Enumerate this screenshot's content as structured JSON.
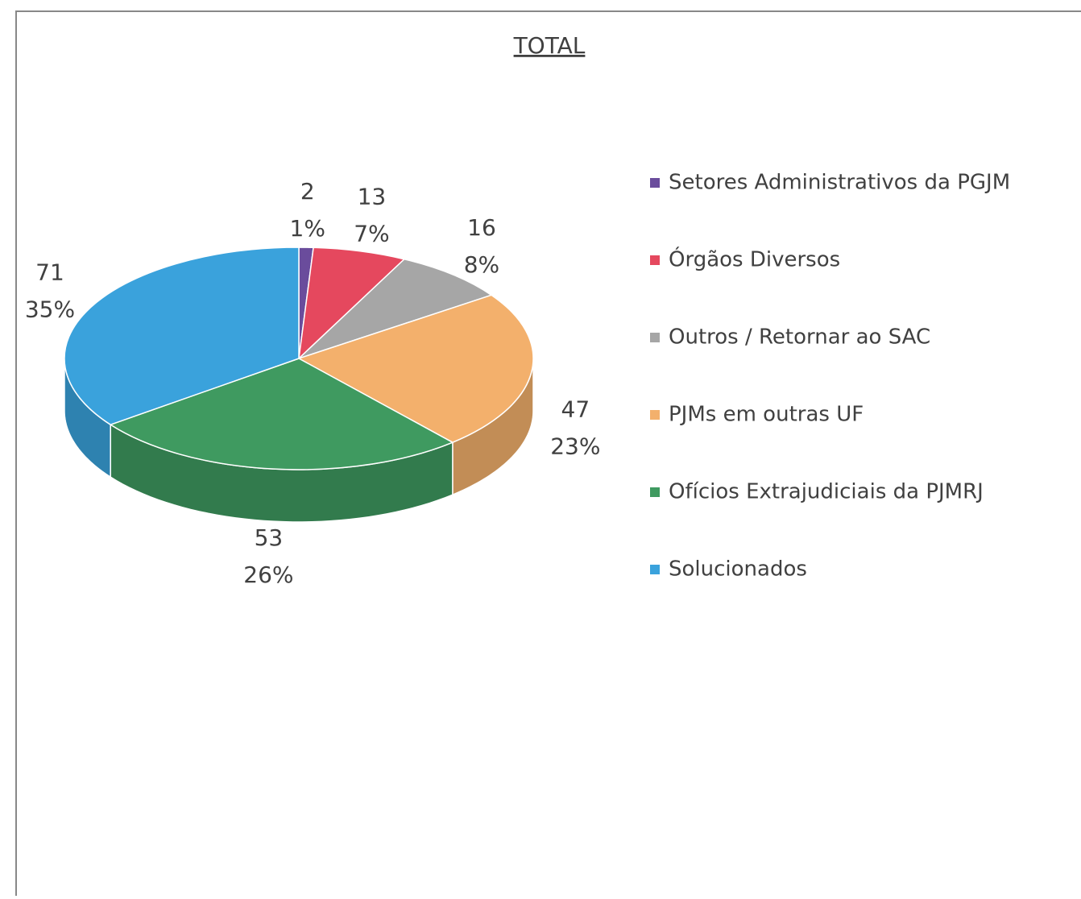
{
  "chart_data": {
    "type": "pie",
    "title": "TOTAL",
    "categories": [
      "Setores Administrativos da PGJM",
      "Órgãos Diversos",
      "Outros / Retornar ao SAC",
      "PJMs em outras UF",
      "Ofícios Extrajudiciais da PJMRJ",
      "Solucionados"
    ],
    "values": [
      2,
      13,
      16,
      47,
      53,
      71
    ],
    "percent_labels": [
      "1%",
      "7%",
      "8%",
      "23%",
      "26%",
      "35%"
    ],
    "colors": [
      "#6a4c9c",
      "#e5485e",
      "#a6a6a6",
      "#f3b06c",
      "#3f9a60",
      "#3aa2dc"
    ],
    "legend": "right"
  }
}
